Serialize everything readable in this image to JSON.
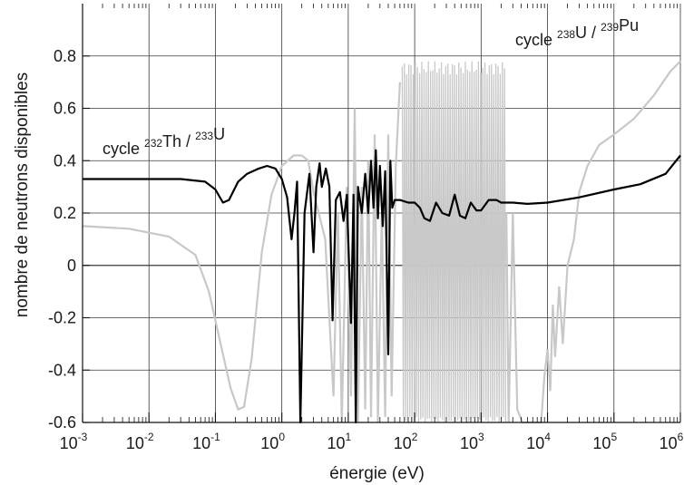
{
  "chart_data": {
    "type": "line",
    "x_scale": "log",
    "xlabel": "énergie (eV)",
    "ylabel": "nombre de neutrons disponibles",
    "xlim": [
      0.001,
      1000000
    ],
    "ylim": [
      -0.6,
      1.0
    ],
    "grid": true,
    "legend": "none",
    "x_ticks": [
      {
        "base": "10",
        "exp": "-3"
      },
      {
        "base": "10",
        "exp": "-2"
      },
      {
        "base": "10",
        "exp": "-1"
      },
      {
        "base": "10",
        "exp": "0"
      },
      {
        "base": "10",
        "exp": "1"
      },
      {
        "base": "10",
        "exp": "2"
      },
      {
        "base": "10",
        "exp": "3"
      },
      {
        "base": "10",
        "exp": "4"
      },
      {
        "base": "10",
        "exp": "5"
      },
      {
        "base": "10",
        "exp": "6"
      }
    ],
    "y_ticks": [
      "-0.6",
      "-0.4",
      "-0.2",
      "0",
      "0.2",
      "0.4",
      "0.6",
      "0.8"
    ],
    "y_tick_values": [
      -0.6,
      -0.4,
      -0.2,
      0,
      0.2,
      0.4,
      0.6,
      0.8
    ],
    "annotations": [
      {
        "parts": [
          {
            "t": "cycle "
          },
          {
            "t": "232",
            "sup": true
          },
          {
            "t": "Th / "
          },
          {
            "t": "233",
            "sup": true
          },
          {
            "t": "U"
          }
        ]
      },
      {
        "parts": [
          {
            "t": "cycle "
          },
          {
            "t": "238",
            "sup": true
          },
          {
            "t": "U / "
          },
          {
            "t": "239",
            "sup": true
          },
          {
            "t": "Pu"
          }
        ]
      }
    ],
    "series": [
      {
        "color": "#000000",
        "smooth": [
          [
            0.001,
            0.33
          ],
          [
            0.03,
            0.33
          ],
          [
            0.07,
            0.32
          ],
          [
            0.1,
            0.29
          ],
          [
            0.13,
            0.24
          ],
          [
            0.16,
            0.25
          ],
          [
            0.22,
            0.32
          ],
          [
            0.3,
            0.35
          ],
          [
            0.45,
            0.37
          ],
          [
            0.6,
            0.38
          ],
          [
            0.8,
            0.37
          ],
          [
            1.0,
            0.33
          ],
          [
            1.2,
            0.26
          ],
          [
            1.4,
            0.1
          ],
          [
            1.55,
            0.2
          ],
          [
            1.7,
            0.32
          ],
          [
            1.9,
            -0.6
          ],
          [
            2.2,
            0.2
          ],
          [
            2.6,
            0.35
          ],
          [
            3.0,
            0.05
          ],
          [
            3.3,
            0.3
          ],
          [
            3.7,
            0.39
          ],
          [
            4.0,
            0.3
          ],
          [
            4.6,
            0.37
          ],
          [
            5.2,
            0.3
          ],
          [
            5.8,
            -0.21
          ],
          [
            6.5,
            0.25
          ],
          [
            7.5,
            0.28
          ],
          [
            8.5,
            0.17
          ],
          [
            9.5,
            0.27
          ],
          [
            11,
            -0.22
          ],
          [
            12,
            0.27
          ],
          [
            13,
            -0.6
          ],
          [
            14,
            0.3
          ],
          [
            16,
            0.2
          ],
          [
            18,
            0.35
          ],
          [
            20,
            0.2
          ],
          [
            22,
            0.4
          ],
          [
            24,
            0.22
          ],
          [
            26,
            0.44
          ],
          [
            28,
            0.18
          ],
          [
            30,
            0.38
          ],
          [
            33,
            0.15
          ],
          [
            36,
            0.36
          ],
          [
            40,
            -0.34
          ],
          [
            43,
            0.4
          ],
          [
            46,
            0.22
          ],
          [
            50,
            0.25
          ],
          [
            60,
            0.25
          ],
          [
            80,
            0.24
          ],
          [
            100,
            0.24
          ],
          [
            120,
            0.22
          ],
          [
            140,
            0.18
          ],
          [
            170,
            0.17
          ],
          [
            210,
            0.24
          ],
          [
            260,
            0.2
          ],
          [
            330,
            0.19
          ],
          [
            400,
            0.27
          ],
          [
            480,
            0.19
          ],
          [
            580,
            0.18
          ],
          [
            700,
            0.24
          ],
          [
            850,
            0.21
          ],
          [
            1000,
            0.21
          ],
          [
            1300,
            0.25
          ],
          [
            1700,
            0.25
          ],
          [
            2000,
            0.24
          ],
          [
            3000,
            0.24
          ],
          [
            5000,
            0.235
          ],
          [
            10000,
            0.24
          ],
          [
            30000,
            0.26
          ],
          [
            100000,
            0.29
          ],
          [
            250000,
            0.31
          ],
          [
            600000,
            0.35
          ],
          [
            1000000,
            0.42
          ]
        ]
      },
      {
        "color": "#c8c8c8",
        "smooth": [
          [
            0.001,
            0.15
          ],
          [
            0.005,
            0.14
          ],
          [
            0.02,
            0.11
          ],
          [
            0.05,
            0.04
          ],
          [
            0.08,
            -0.1
          ],
          [
            0.12,
            -0.3
          ],
          [
            0.17,
            -0.47
          ],
          [
            0.22,
            -0.55
          ],
          [
            0.27,
            -0.54
          ],
          [
            0.35,
            -0.36
          ],
          [
            0.5,
            0.05
          ],
          [
            0.7,
            0.27
          ],
          [
            1.0,
            0.38
          ],
          [
            1.5,
            0.42
          ],
          [
            2.0,
            0.42
          ],
          [
            2.5,
            0.4
          ],
          [
            3.0,
            0.28
          ],
          [
            4.5,
            0.1
          ],
          [
            6.0,
            -0.5
          ],
          [
            7.0,
            0.2
          ],
          [
            8.0,
            -0.6
          ],
          [
            9.5,
            0.3
          ],
          [
            11,
            -0.5
          ],
          [
            12.5,
            0.6
          ],
          [
            14,
            -0.6
          ],
          [
            16,
            0.3
          ],
          [
            18,
            -0.55
          ],
          [
            20,
            0.4
          ],
          [
            22,
            -0.58
          ],
          [
            25,
            0.5
          ],
          [
            28,
            -0.6
          ],
          [
            32,
            0.2
          ],
          [
            36,
            -0.58
          ],
          [
            40,
            0.5
          ],
          [
            45,
            -0.5
          ],
          [
            52,
            0.38
          ],
          [
            60,
            0.7
          ]
        ],
        "band": {
          "x_start": 65,
          "x_end": 2400,
          "y_min": -0.6,
          "y_max": 0.78
        },
        "tail": [
          [
            2400,
            0.2
          ],
          [
            2600,
            -0.6
          ],
          [
            3000,
            0.2
          ],
          [
            3500,
            -0.55
          ],
          [
            4200,
            -0.6
          ],
          [
            6000,
            -0.6
          ],
          [
            8000,
            -0.6
          ],
          [
            9000,
            -0.42
          ],
          [
            10000,
            -0.32
          ],
          [
            11000,
            -0.48
          ],
          [
            12000,
            -0.15
          ],
          [
            13000,
            -0.35
          ],
          [
            15000,
            -0.08
          ],
          [
            17000,
            -0.3
          ],
          [
            20000,
            0.0
          ],
          [
            25000,
            0.1
          ],
          [
            30000,
            0.28
          ],
          [
            40000,
            0.38
          ],
          [
            60000,
            0.46
          ],
          [
            100000,
            0.5
          ],
          [
            200000,
            0.56
          ],
          [
            400000,
            0.65
          ],
          [
            700000,
            0.74
          ],
          [
            1000000,
            0.78
          ]
        ]
      }
    ]
  }
}
